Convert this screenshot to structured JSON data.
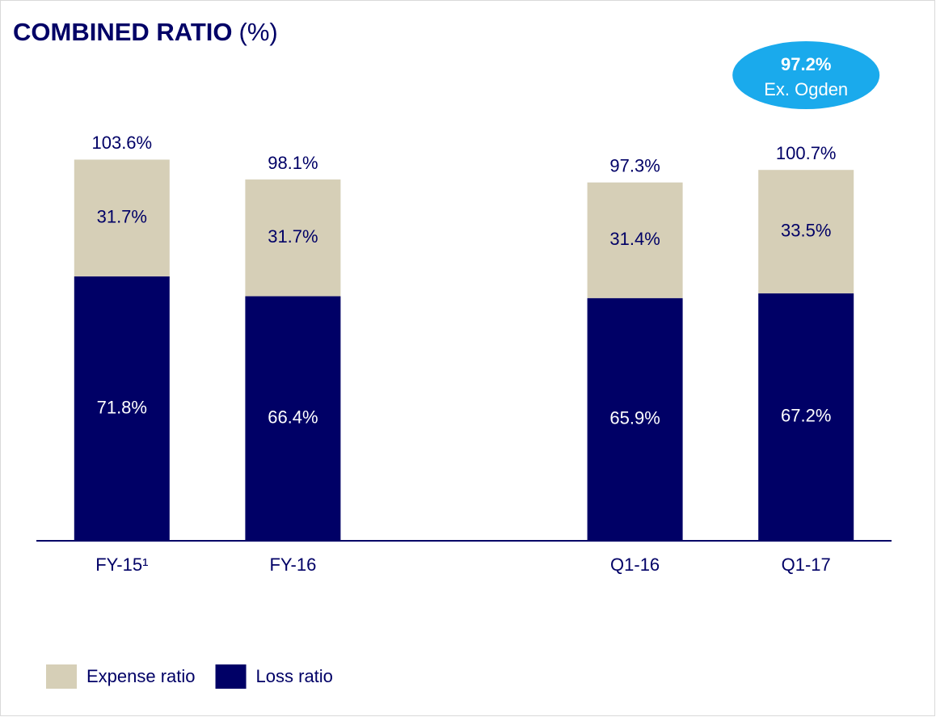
{
  "chart_data": {
    "type": "stacked-bar",
    "title": "COMBINED RATIO",
    "unit": "(%)",
    "categories": [
      "FY-15¹",
      "FY-16",
      null,
      "Q1-16",
      "Q1-17"
    ],
    "series": [
      {
        "name": "Loss ratio",
        "color": "#000066",
        "values": [
          71.8,
          66.4,
          null,
          65.9,
          67.2
        ],
        "value_labels": [
          "71.8%",
          "66.4%",
          null,
          "65.9%",
          "67.2%"
        ]
      },
      {
        "name": "Expense ratio",
        "color": "#d6cfb7",
        "values": [
          31.7,
          31.7,
          null,
          31.4,
          33.5
        ],
        "value_labels": [
          "31.7%",
          "31.7%",
          null,
          "31.4%",
          "33.5%"
        ]
      }
    ],
    "totals": [
      103.6,
      98.1,
      null,
      97.3,
      100.7
    ],
    "total_labels": [
      "103.6%",
      "98.1%",
      null,
      "97.3%",
      "100.7%"
    ],
    "annotation": {
      "label": "97.2%",
      "text": "Ex. Ogden",
      "color": "#1aaaec"
    },
    "ylim": [
      0,
      110
    ]
  }
}
